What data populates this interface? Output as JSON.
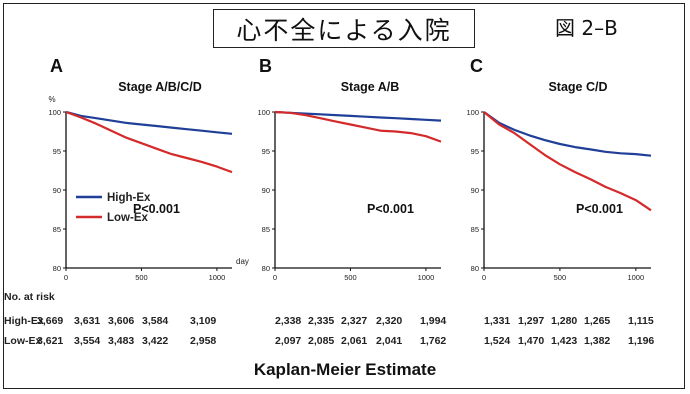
{
  "header": {
    "title": "心不全による入院",
    "figure_label": "図 2–B"
  },
  "caption": "Kaplan-Meier Estimate",
  "at_risk": {
    "label": "No. at risk",
    "rows": [
      {
        "name": "High-Ex",
        "values": [
          [
            "3,669",
            "3,631",
            "3,606",
            "3,584",
            "3,109"
          ],
          [
            "2,338",
            "2,335",
            "2,327",
            "2,320",
            "1,994"
          ],
          [
            "1,331",
            "1,297",
            "1,280",
            "1,265",
            "1,115"
          ]
        ]
      },
      {
        "name": "Low-Ex",
        "values": [
          [
            "3,621",
            "3,554",
            "3,483",
            "3,422",
            "2,958"
          ],
          [
            "2,097",
            "2,085",
            "2,061",
            "2,041",
            "1,762"
          ],
          [
            "1,524",
            "1,470",
            "1,423",
            "1,382",
            "1,196"
          ]
        ]
      }
    ]
  },
  "chart_data": [
    {
      "type": "line",
      "panel": "A",
      "title": "Stage A/B/C/D",
      "ylabel": "%",
      "xlabel": "day",
      "xlim": [
        0,
        1100
      ],
      "ylim": [
        80,
        100
      ],
      "xticks": [
        0,
        500,
        1000
      ],
      "yticks": [
        80,
        85,
        90,
        95,
        100
      ],
      "annotation": "P<0.001",
      "legend": {
        "position": "lower-left",
        "entries": [
          "High-Ex",
          "Low-Ex"
        ]
      },
      "series": [
        {
          "name": "High-Ex",
          "color": "#1f3f99",
          "x": [
            0,
            100,
            200,
            300,
            400,
            500,
            600,
            700,
            800,
            900,
            1000,
            1100
          ],
          "y": [
            100,
            99.5,
            99.2,
            98.9,
            98.6,
            98.4,
            98.2,
            98.0,
            97.8,
            97.6,
            97.4,
            97.2
          ]
        },
        {
          "name": "Low-Ex",
          "color": "#d42a2a",
          "x": [
            0,
            100,
            200,
            300,
            400,
            500,
            600,
            700,
            800,
            900,
            1000,
            1100
          ],
          "y": [
            100,
            99.3,
            98.5,
            97.6,
            96.7,
            96.0,
            95.3,
            94.6,
            94.1,
            93.6,
            93.0,
            92.3
          ]
        }
      ]
    },
    {
      "type": "line",
      "panel": "B",
      "title": "Stage A/B",
      "xlim": [
        0,
        1100
      ],
      "ylim": [
        80,
        100
      ],
      "xticks": [
        0,
        500,
        1000
      ],
      "yticks": [
        80,
        85,
        90,
        95,
        100
      ],
      "annotation": "P<0.001",
      "series": [
        {
          "name": "High-Ex",
          "color": "#1f3f99",
          "x": [
            0,
            100,
            200,
            300,
            400,
            500,
            600,
            700,
            800,
            900,
            1000,
            1100
          ],
          "y": [
            100,
            99.9,
            99.8,
            99.7,
            99.6,
            99.5,
            99.4,
            99.3,
            99.2,
            99.1,
            99.0,
            98.9
          ]
        },
        {
          "name": "Low-Ex",
          "color": "#d42a2a",
          "x": [
            0,
            100,
            200,
            300,
            400,
            500,
            600,
            700,
            800,
            900,
            1000,
            1100
          ],
          "y": [
            100,
            99.9,
            99.6,
            99.2,
            98.8,
            98.4,
            98.0,
            97.6,
            97.5,
            97.3,
            96.9,
            96.2
          ]
        }
      ]
    },
    {
      "type": "line",
      "panel": "C",
      "title": "Stage C/D",
      "xlim": [
        0,
        1100
      ],
      "ylim": [
        80,
        100
      ],
      "xticks": [
        0,
        500,
        1000
      ],
      "yticks": [
        80,
        85,
        90,
        95,
        100
      ],
      "annotation": "P<0.001",
      "series": [
        {
          "name": "High-Ex",
          "color": "#1f3f99",
          "x": [
            0,
            100,
            200,
            300,
            400,
            500,
            600,
            700,
            800,
            900,
            1000,
            1100
          ],
          "y": [
            100,
            98.6,
            97.7,
            97.0,
            96.4,
            95.9,
            95.5,
            95.2,
            94.9,
            94.7,
            94.6,
            94.4
          ]
        },
        {
          "name": "Low-Ex",
          "color": "#d42a2a",
          "x": [
            0,
            100,
            200,
            300,
            400,
            500,
            600,
            700,
            800,
            900,
            1000,
            1100
          ],
          "y": [
            100,
            98.4,
            97.3,
            95.9,
            94.5,
            93.3,
            92.3,
            91.4,
            90.4,
            89.6,
            88.7,
            87.4
          ]
        }
      ]
    }
  ]
}
